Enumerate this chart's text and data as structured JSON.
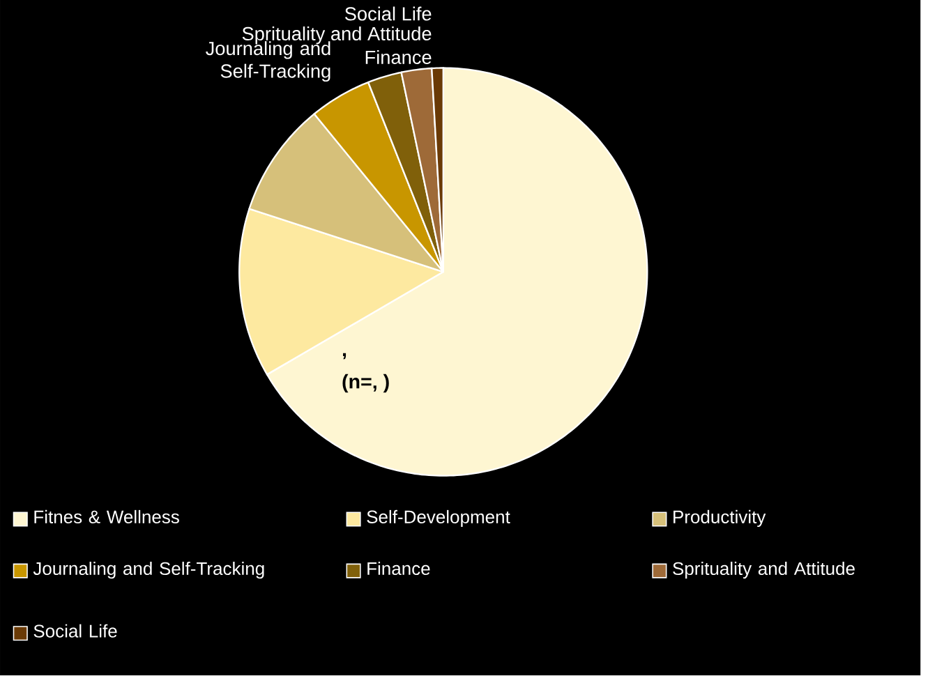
{
  "chart_data": {
    "type": "pie",
    "categories": [
      "Fitnes & Wellness",
      "Self-Development",
      "Productivity",
      "Journaling and Self-Tracking",
      "Finance",
      "Sprituality and Attitude",
      "Social Life"
    ],
    "values": [
      66.6,
      13.4,
      9.1,
      4.9,
      2.7,
      2.4,
      0.9
    ],
    "colors": [
      "#fef6d2",
      "#fde9a0",
      "#d6c07a",
      "#c89600",
      "#80600a",
      "#9e6a38",
      "#6a3a06"
    ],
    "legend": "bottom",
    "annotations": [
      ",",
      "(n=, )",
      {
        "text": "Journaling and Self-Tracking",
        "x": "Journaling and Self-Tracking"
      },
      {
        "text": "Finance",
        "x": "Finance"
      },
      {
        "text": "Sprituality and Attitude",
        "x": "Sprituality and Attitude"
      },
      {
        "text": "Social Life",
        "x": "Social Life"
      }
    ]
  }
}
